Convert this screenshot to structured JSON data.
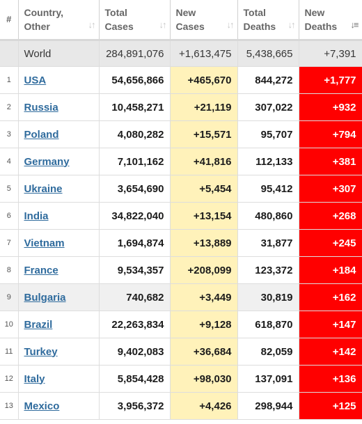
{
  "header": {
    "num": "#",
    "country": "Country,\nOther",
    "total_cases": "Total\nCases",
    "new_cases": "New\nCases",
    "total_deaths": "Total\nDeaths",
    "new_deaths": "New\nDeaths"
  },
  "world": {
    "label": "World",
    "total_cases": "284,891,076",
    "new_cases": "+1,613,475",
    "total_deaths": "5,438,665",
    "new_deaths": "+7,391"
  },
  "rows": [
    {
      "num": "1",
      "country": "USA",
      "total_cases": "54,656,866",
      "new_cases": "+465,670",
      "total_deaths": "844,272",
      "new_deaths": "+1,777"
    },
    {
      "num": "2",
      "country": "Russia",
      "total_cases": "10,458,271",
      "new_cases": "+21,119",
      "total_deaths": "307,022",
      "new_deaths": "+932"
    },
    {
      "num": "3",
      "country": "Poland",
      "total_cases": "4,080,282",
      "new_cases": "+15,571",
      "total_deaths": "95,707",
      "new_deaths": "+794"
    },
    {
      "num": "4",
      "country": "Germany",
      "total_cases": "7,101,162",
      "new_cases": "+41,816",
      "total_deaths": "112,133",
      "new_deaths": "+381"
    },
    {
      "num": "5",
      "country": "Ukraine",
      "total_cases": "3,654,690",
      "new_cases": "+5,454",
      "total_deaths": "95,412",
      "new_deaths": "+307"
    },
    {
      "num": "6",
      "country": "India",
      "total_cases": "34,822,040",
      "new_cases": "+13,154",
      "total_deaths": "480,860",
      "new_deaths": "+268"
    },
    {
      "num": "7",
      "country": "Vietnam",
      "total_cases": "1,694,874",
      "new_cases": "+13,889",
      "total_deaths": "31,877",
      "new_deaths": "+245"
    },
    {
      "num": "8",
      "country": "France",
      "total_cases": "9,534,357",
      "new_cases": "+208,099",
      "total_deaths": "123,372",
      "new_deaths": "+184"
    },
    {
      "num": "9",
      "country": "Bulgaria",
      "total_cases": "740,682",
      "new_cases": "+3,449",
      "total_deaths": "30,819",
      "new_deaths": "+162"
    },
    {
      "num": "10",
      "country": "Brazil",
      "total_cases": "22,263,834",
      "new_cases": "+9,128",
      "total_deaths": "618,870",
      "new_deaths": "+147"
    },
    {
      "num": "11",
      "country": "Turkey",
      "total_cases": "9,402,083",
      "new_cases": "+36,684",
      "total_deaths": "82,059",
      "new_deaths": "+142"
    },
    {
      "num": "12",
      "country": "Italy",
      "total_cases": "5,854,428",
      "new_cases": "+98,030",
      "total_deaths": "137,091",
      "new_deaths": "+136"
    },
    {
      "num": "13",
      "country": "Mexico",
      "total_cases": "3,956,372",
      "new_cases": "+4,426",
      "total_deaths": "298,944",
      "new_deaths": "+125"
    }
  ],
  "highlighted_row": "9",
  "colors": {
    "new_cases_bg": "#fff2ba",
    "new_deaths_bg": "#ff0000",
    "world_bg": "#e8e8e8",
    "link": "#2f6b9d"
  },
  "icons": {
    "sort_inactive": "sort-arrows-icon",
    "sort_active": "sort-descending-icon"
  }
}
